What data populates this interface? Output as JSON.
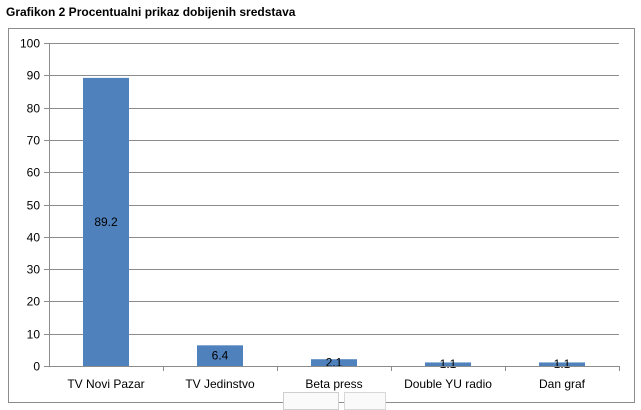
{
  "title": "Grafikon  2 Procentualni  prikaz dobijenih  sredstava",
  "chart_data": {
    "type": "bar",
    "categories": [
      "TV Novi Pazar",
      "TV Jedinstvo",
      "Beta press",
      "Double YU radio",
      "Dan graf"
    ],
    "values": [
      89.2,
      6.4,
      2.1,
      1.1,
      1.1
    ],
    "data_labels": [
      "89.2",
      "6.4",
      "2.1",
      "1.1",
      "1.1"
    ],
    "ylim": [
      0,
      100
    ],
    "yticks": [
      0,
      10,
      20,
      30,
      40,
      50,
      60,
      70,
      80,
      90,
      100
    ],
    "xlabel": "",
    "ylabel": "",
    "grid": true,
    "legend": "none",
    "bar_color": "#4f81bd",
    "grid_color": "#8c8c8c"
  }
}
